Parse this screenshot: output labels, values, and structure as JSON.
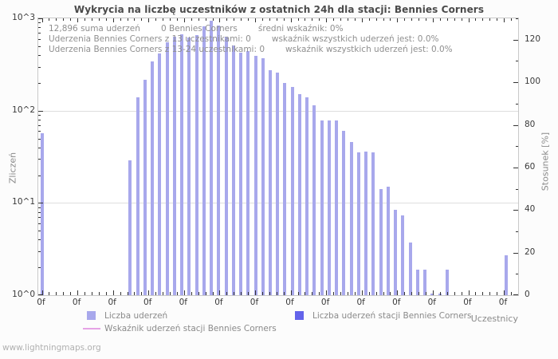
{
  "watermark": "www.lightningmaps.org",
  "chart_data": {
    "type": "bar",
    "title": "Wykrycia na liczbę uczestników z ostatnich 24h dla stacji: Bennies Corners",
    "ylabel": "Zliczeń",
    "y2label": "Stosunek [%]",
    "xlabel": "Uczestnicy",
    "y_scale": "log10",
    "y_ticks": [
      "10^0",
      "10^1",
      "10^2",
      "10^3"
    ],
    "y_exp_range": [
      0,
      3
    ],
    "y2_ticks": [
      0,
      20,
      40,
      60,
      80,
      100,
      120
    ],
    "y2_range": [
      0,
      130
    ],
    "x_tick_labels": [
      "0f",
      "0f",
      "0f",
      "0f",
      "0f",
      "0f",
      "0f",
      "0f",
      "0f",
      "0f",
      "0f",
      "0f",
      "0f",
      "0f"
    ],
    "grid": "horizontal-decades",
    "legend_position": "bottom",
    "annotations": [
      [
        "12,896 suma uderzeń",
        "0 Bennies Corners",
        "średni wskaźnik: 0%"
      ],
      [
        "Uderzenia Bennies Corners z 13 uczestnikami: 0",
        "wskaźnik wszystkich uderzeń jest: 0.0%"
      ],
      [
        "Uderzenia Bennies Corners z 13-24 uczestnikami: 0",
        "wskaźnik wszystkich uderzeń jest: 0.0%"
      ]
    ],
    "series": [
      {
        "name": "Liczba uderzeń",
        "type": "bar",
        "color": "#a8a8ec",
        "values": [
          57,
          0,
          0,
          0,
          0,
          0,
          0,
          0,
          0,
          0,
          0,
          0,
          29,
          139,
          214,
          339,
          420,
          550,
          635,
          678,
          615,
          655,
          826,
          950,
          840,
          634,
          505,
          427,
          441,
          389,
          369,
          277,
          257,
          200,
          182,
          152,
          140,
          114,
          79,
          79,
          79,
          60,
          46,
          35,
          36,
          35,
          14,
          15,
          8.4,
          7.4,
          3.7,
          1.9,
          1.9,
          1.05,
          1.05,
          1.9,
          0,
          0,
          0,
          0,
          0,
          0,
          0,
          2.7
        ]
      },
      {
        "name": "Liczba uderzeń stacji Bennies Corners",
        "type": "bar",
        "color": "#6363ea",
        "values_constant": 0
      },
      {
        "name": "Wskaźnik uderzeń stacji Bennies Corners",
        "type": "line",
        "color": "#e6a3e6",
        "values_constant": 0
      }
    ]
  }
}
